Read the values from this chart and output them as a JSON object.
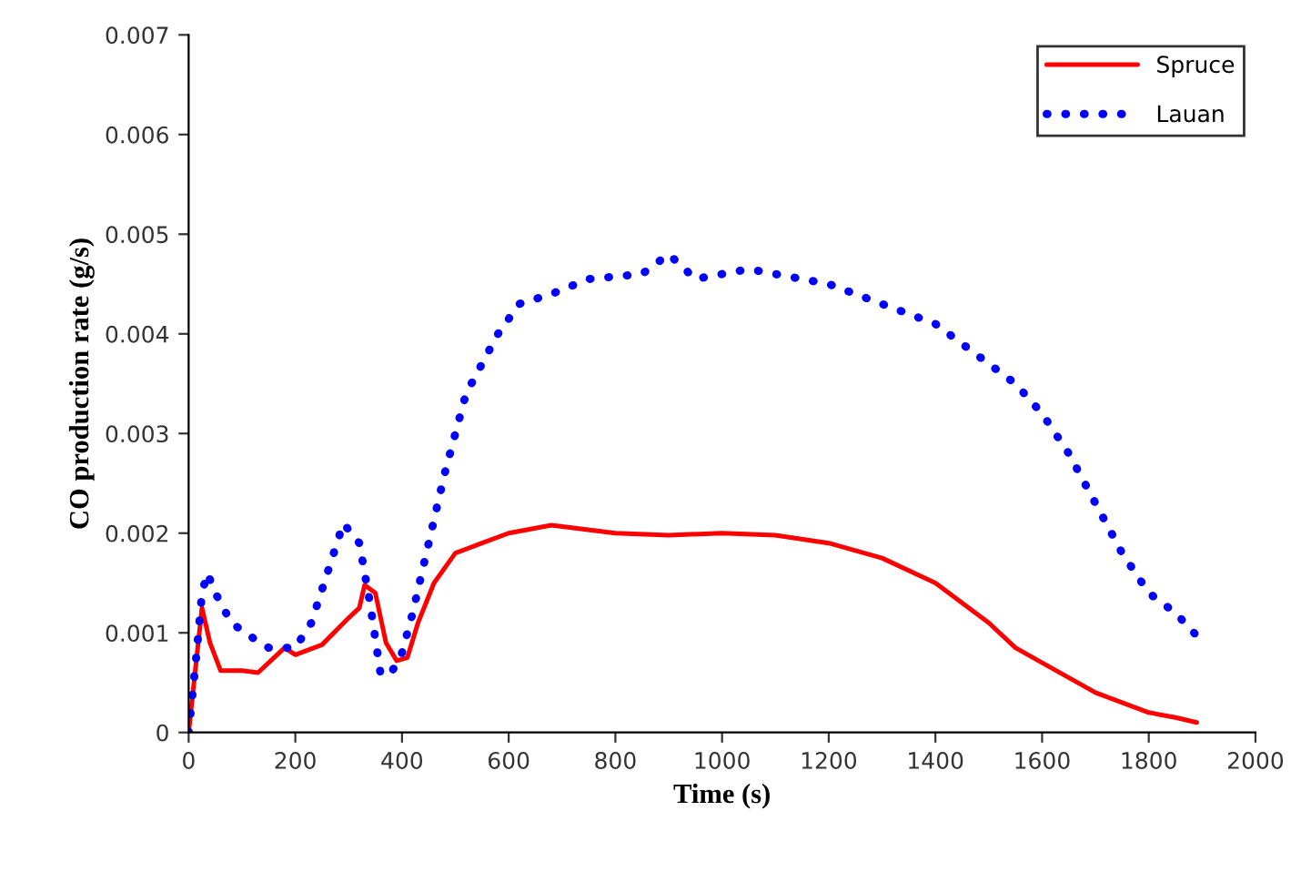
{
  "chart_data": {
    "type": "line",
    "xlabel": "Time (s)",
    "ylabel": "CO production rate (g/s)",
    "xlim": [
      0,
      2000
    ],
    "xticks": [
      0,
      200,
      400,
      600,
      800,
      1000,
      1200,
      1400,
      1600,
      1800,
      2000
    ],
    "ylim": [
      0,
      0.007
    ],
    "yticks": [
      0,
      0.001,
      0.002,
      0.003,
      0.004,
      0.005,
      0.006,
      0.007
    ],
    "grid": false,
    "legend": "top right",
    "marker": "none",
    "series": [
      {
        "name": "Spruce",
        "color": "#ff0000",
        "line_style": "solid",
        "x": [
          0,
          10,
          25,
          40,
          60,
          100,
          130,
          160,
          180,
          200,
          250,
          300,
          320,
          330,
          350,
          370,
          390,
          410,
          430,
          460,
          500,
          550,
          600,
          680,
          800,
          900,
          1000,
          1100,
          1200,
          1300,
          1400,
          1500,
          1550,
          1600,
          1700,
          1800,
          1850,
          1890
        ],
        "values": [
          0,
          0.0005,
          0.00125,
          0.0009,
          0.00062,
          0.00062,
          0.0006,
          0.00075,
          0.00085,
          0.00078,
          0.00088,
          0.00115,
          0.00125,
          0.00148,
          0.0014,
          0.0009,
          0.00072,
          0.00075,
          0.0011,
          0.0015,
          0.0018,
          0.0019,
          0.002,
          0.00208,
          0.002,
          0.00198,
          0.002,
          0.00198,
          0.0019,
          0.00175,
          0.0015,
          0.0011,
          0.00085,
          0.0007,
          0.0004,
          0.0002,
          0.00015,
          0.0001
        ]
      },
      {
        "name": "Lauan",
        "color": "#0000ff",
        "line_style": "dotted",
        "x": [
          0,
          15,
          25,
          35,
          50,
          80,
          120,
          150,
          200,
          230,
          260,
          290,
          320,
          340,
          360,
          380,
          400,
          420,
          450,
          480,
          500,
          520,
          550,
          580,
          620,
          680,
          750,
          850,
          900,
          950,
          1000,
          1050,
          1100,
          1200,
          1250,
          1300,
          1400,
          1450,
          1500,
          1550,
          1600,
          1650,
          1700,
          1750,
          1800,
          1850,
          1890
        ],
        "values": [
          0,
          0.0008,
          0.0014,
          0.0016,
          0.0014,
          0.0011,
          0.00095,
          0.00085,
          0.00085,
          0.0011,
          0.0016,
          0.0021,
          0.0019,
          0.0013,
          0.00058,
          0.0006,
          0.0008,
          0.0012,
          0.0019,
          0.0026,
          0.003,
          0.0034,
          0.0037,
          0.004,
          0.0043,
          0.0044,
          0.00455,
          0.0046,
          0.0048,
          0.00455,
          0.0046,
          0.00465,
          0.0046,
          0.0045,
          0.0044,
          0.0043,
          0.0041,
          0.0039,
          0.0037,
          0.0035,
          0.0032,
          0.0028,
          0.0023,
          0.0018,
          0.0014,
          0.0012,
          0.00097
        ]
      }
    ]
  }
}
